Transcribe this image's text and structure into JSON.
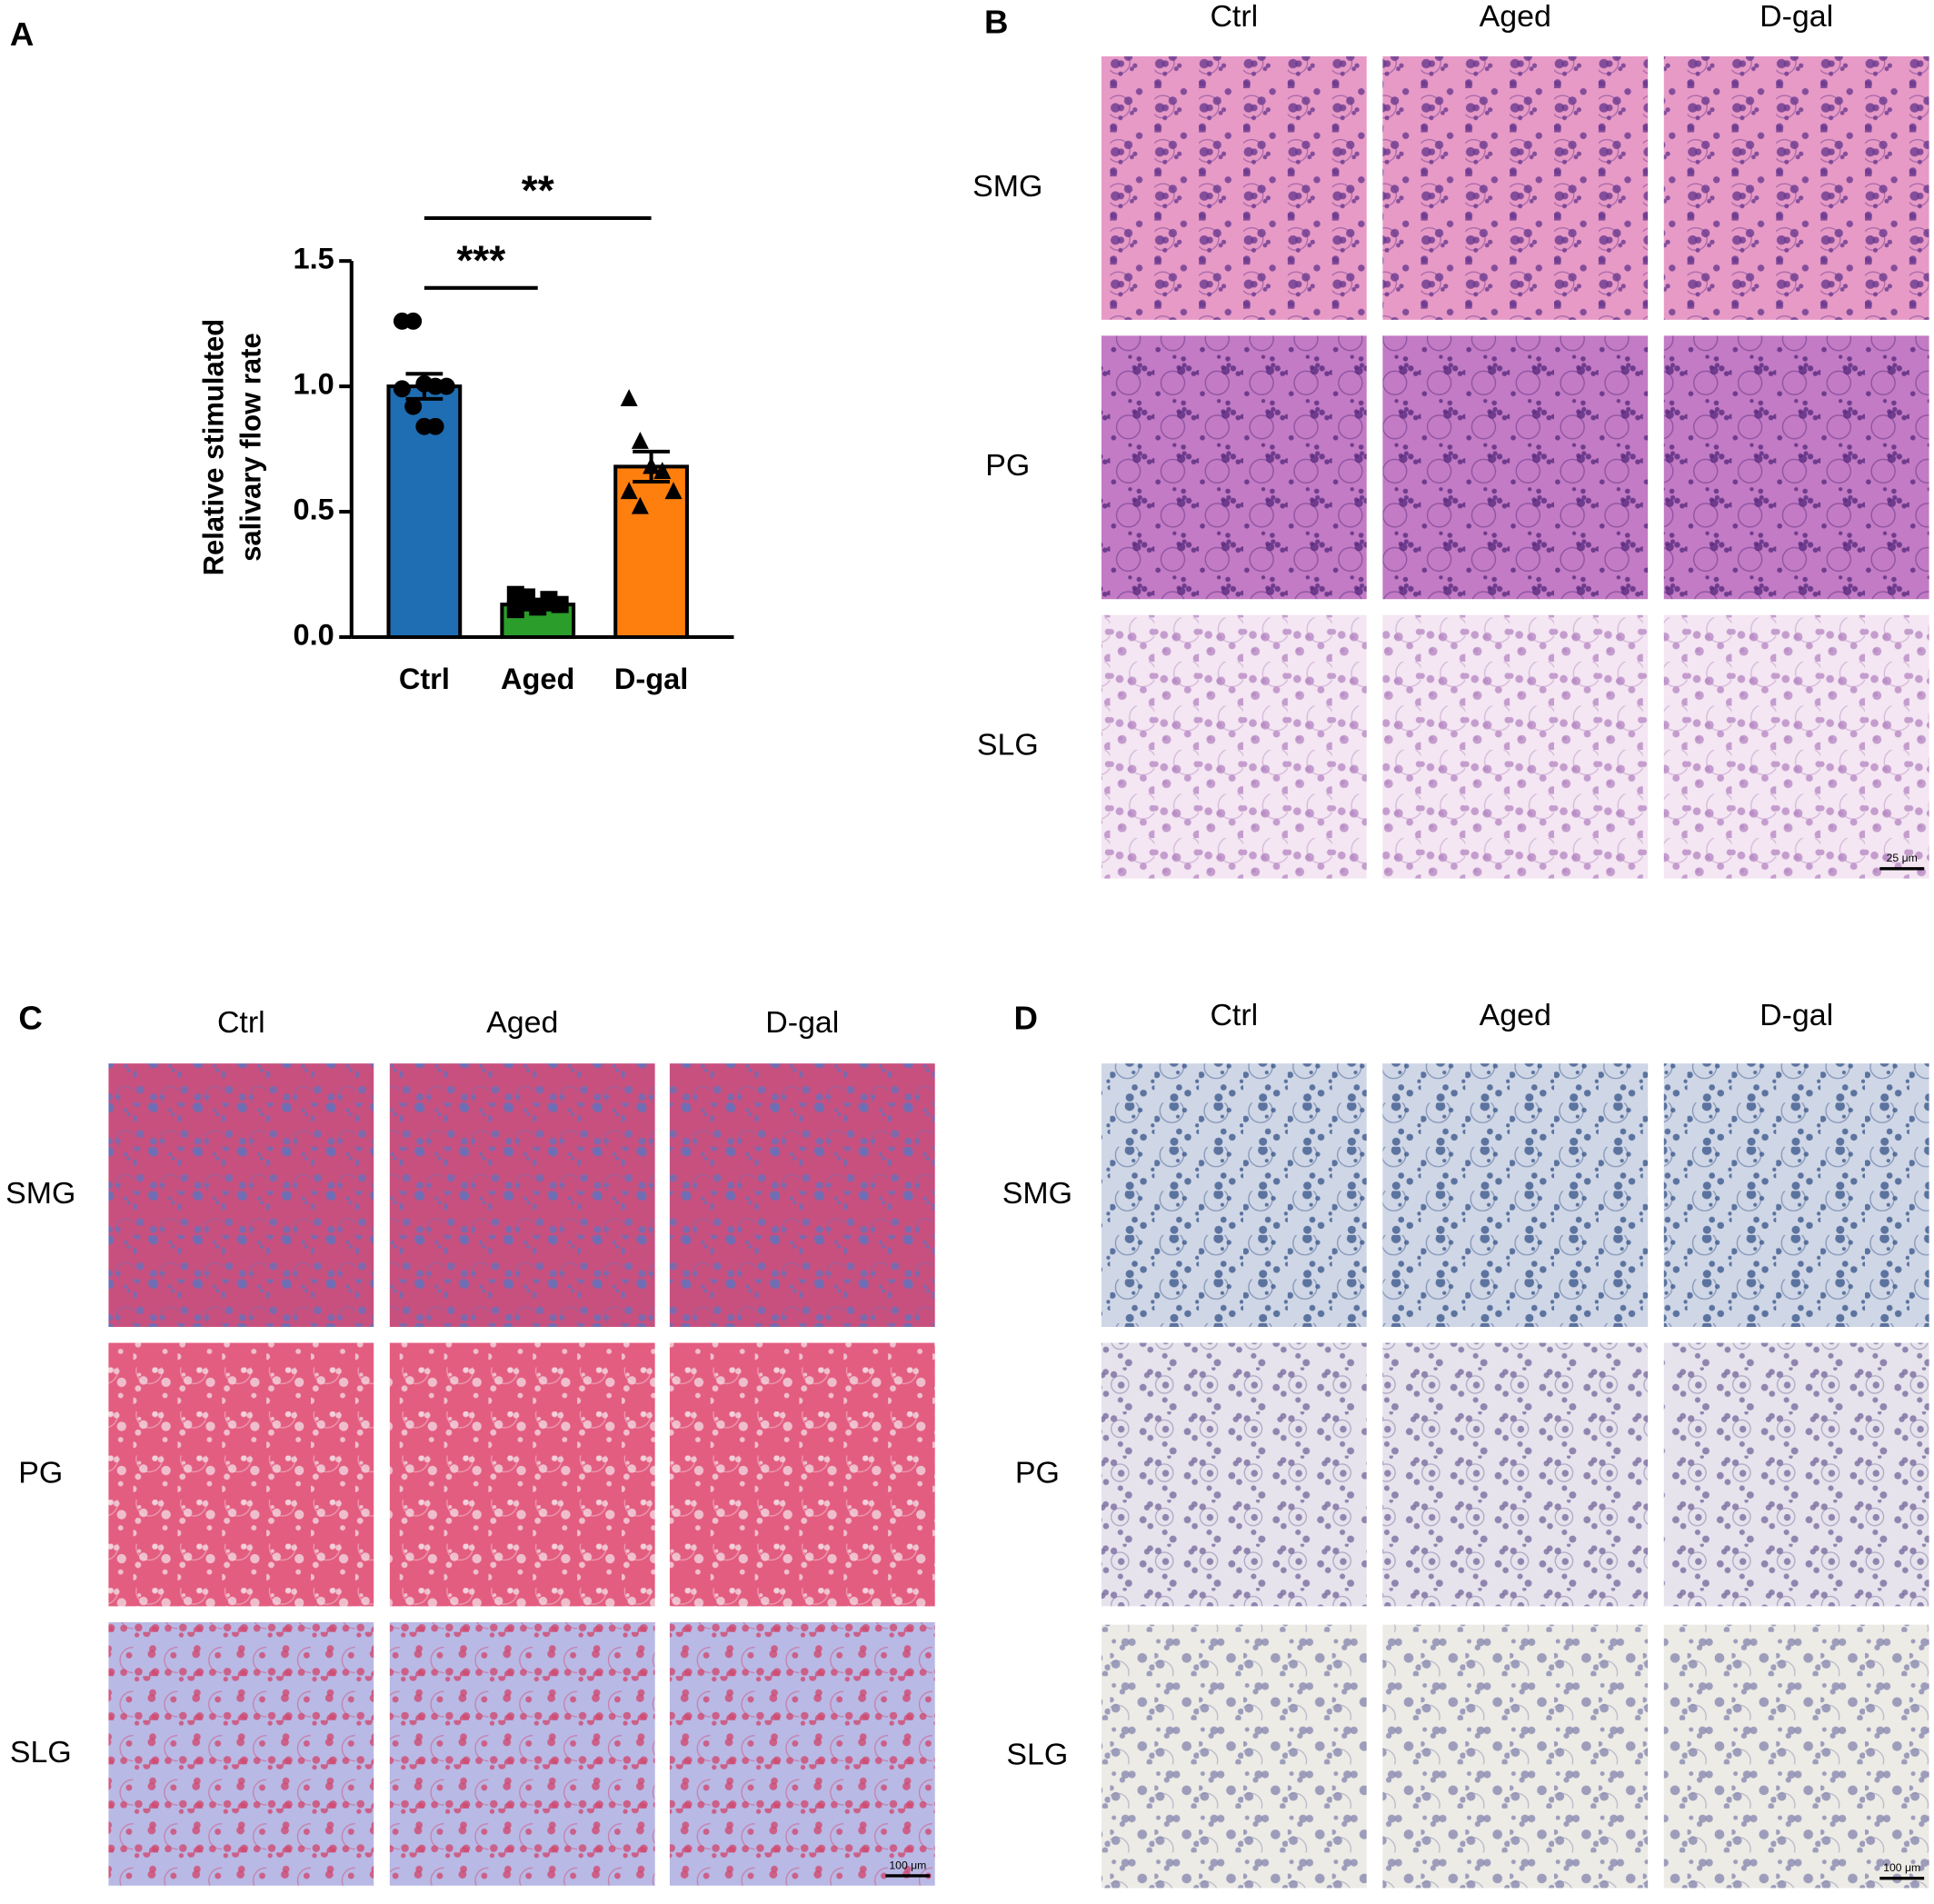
{
  "chart_data": {
    "type": "bar",
    "panel_label": "A",
    "ylabel": [
      "Relative stimulated",
      "salivary flow rate"
    ],
    "categories": [
      "Ctrl",
      "Aged",
      "D-gal"
    ],
    "values": [
      1.0,
      0.13,
      0.68
    ],
    "errors": [
      0.05,
      0.02,
      0.06
    ],
    "colors": [
      "#1f6db3",
      "#2a9d2a",
      "#ff7f0e"
    ],
    "markers": [
      "circle",
      "square",
      "triangle"
    ],
    "points": [
      [
        1.26,
        1.26,
        1.01,
        1.0,
        1.0,
        0.99,
        0.92,
        0.84,
        0.84
      ],
      [
        0.17,
        0.14,
        0.12,
        0.15,
        0.13,
        0.11,
        0.16
      ],
      [
        0.95,
        0.78,
        0.68,
        0.66,
        0.58,
        0.58,
        0.52
      ]
    ],
    "ylim": [
      0,
      1.5
    ],
    "yticks": [
      {
        "value": 0,
        "label": "0.0"
      },
      {
        "value": 0.5,
        "label": "0.5"
      },
      {
        "value": 1.0,
        "label": "1.0"
      },
      {
        "value": 1.5,
        "label": "1.5"
      }
    ],
    "significance": [
      {
        "label": "***",
        "from": "Ctrl",
        "to": "Aged"
      },
      {
        "label": "**",
        "from": "Ctrl",
        "to": "D-gal"
      }
    ]
  },
  "figure_panels": [
    {
      "label": "B",
      "columns": [
        "Ctrl",
        "Aged",
        "D-gal"
      ],
      "rows": [
        "SMG",
        "PG",
        "SLG"
      ],
      "scale_bar": "25 μm",
      "row_colors": [
        [
          "#e79ac6",
          "#6b3a8e"
        ],
        [
          "#c27bc4",
          "#5a2a80"
        ],
        [
          "#f4e6f2",
          "#b88bc6"
        ]
      ]
    },
    {
      "label": "C",
      "columns": [
        "Ctrl",
        "Aged",
        "D-gal"
      ],
      "rows": [
        "SMG",
        "PG",
        "SLG"
      ],
      "scale_bar": "100 μm",
      "row_colors": [
        [
          "#c8507f",
          "#6a6fb8"
        ],
        [
          "#e35d80",
          "#f2d6df"
        ],
        [
          "#b9b9e6",
          "#d04a70"
        ]
      ]
    },
    {
      "label": "D",
      "columns": [
        "Ctrl",
        "Aged",
        "D-gal"
      ],
      "rows": [
        "SMG",
        "PG",
        "SLG"
      ],
      "scale_bar": "100 μm",
      "row_colors": [
        [
          "#cfd6e6",
          "#3e5a8c"
        ],
        [
          "#e6e3ec",
          "#7b6ea0"
        ],
        [
          "#ecebe6",
          "#8a8ab0"
        ]
      ]
    }
  ]
}
